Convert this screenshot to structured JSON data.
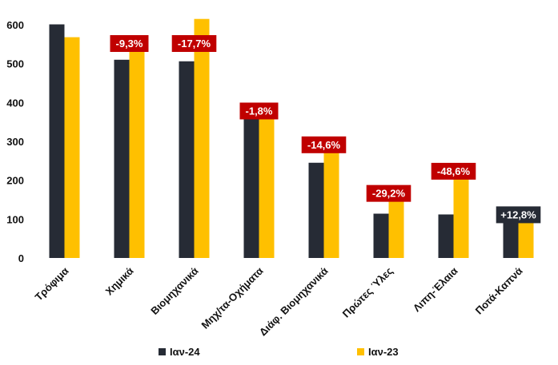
{
  "chart_data": {
    "type": "bar",
    "categories": [
      "Τρόφιμα",
      "Χημικά",
      "Βιομηχανικά",
      "Μηχ/τα-Οχήματα",
      "Διάφ. Βιομηχανικά",
      "Πρώτες Ύλες",
      "Λιπη-Έλαια",
      "Ποτά-Καπνά"
    ],
    "series": [
      {
        "name": "Ιαν-24",
        "color": "#262B35",
        "values": [
          601,
          510,
          506,
          366,
          245,
          114,
          112,
          106
        ]
      },
      {
        "name": "Ιαν-23",
        "color": "#FFC000",
        "values": [
          568,
          562,
          615,
          373,
          286,
          161,
          218,
          94
        ]
      }
    ],
    "annotations": [
      {
        "category": "Χημικά",
        "text": "-9,3%",
        "color": "#C00000"
      },
      {
        "category": "Βιομηχανικά",
        "text": "-17,7%",
        "color": "#C00000"
      },
      {
        "category": "Μηχ/τα-Οχήματα",
        "text": "-1,8%",
        "color": "#C00000"
      },
      {
        "category": "Διάφ. Βιομηχανικά",
        "text": "-14,6%",
        "color": "#C00000"
      },
      {
        "category": "Πρώτες Ύλες",
        "text": "-29,2%",
        "color": "#C00000"
      },
      {
        "category": "Λιπη-Έλαια",
        "text": "-48,6%",
        "color": "#C00000"
      },
      {
        "category": "Ποτά-Καπνά",
        "text": "+12,8%",
        "color": "#262B35"
      }
    ],
    "yticks": [
      0,
      100,
      200,
      300,
      400,
      500,
      600
    ],
    "ylim": [
      0,
      600
    ],
    "grid": false,
    "legend_position": "bottom"
  }
}
